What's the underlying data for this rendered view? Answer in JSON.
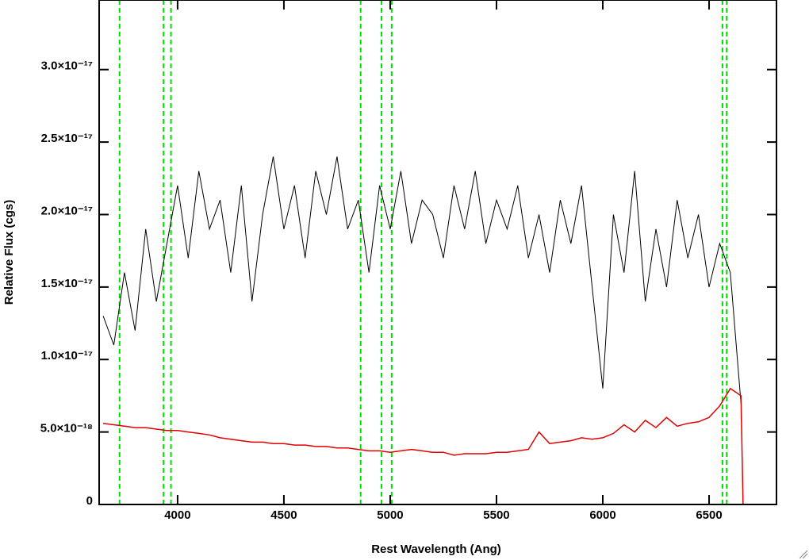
{
  "chart_data": {
    "type": "line",
    "xlabel": "Rest Wavelength (Ang)",
    "ylabel": "Relative Flux (cgs)",
    "xlim": [
      3631,
      6817
    ],
    "ylim": [
      0,
      3.48e-17
    ],
    "xticks": [
      4000,
      4500,
      5000,
      5500,
      6000,
      6500
    ],
    "yticks": [
      0,
      {
        "value": 5e-18,
        "label": "5.0×10⁻¹⁸"
      },
      {
        "value": 1e-17,
        "label": "1.0×10⁻¹⁷"
      },
      {
        "value": 1.5e-17,
        "label": "1.5×10⁻¹⁷"
      },
      {
        "value": 2e-17,
        "label": "2.0×10⁻¹⁷"
      },
      {
        "value": 2.5e-17,
        "label": "2.5×10⁻¹⁷"
      },
      {
        "value": 3e-17,
        "label": "3.0×10⁻¹⁷"
      }
    ],
    "series": [
      {
        "color": "#000000",
        "x": [
          3650,
          3700,
          3750,
          3800,
          3850,
          3900,
          3950,
          4000,
          4050,
          4100,
          4150,
          4200,
          4250,
          4300,
          4350,
          4400,
          4450,
          4500,
          4550,
          4600,
          4650,
          4700,
          4750,
          4800,
          4850,
          4900,
          4950,
          5000,
          5050,
          5100,
          5150,
          5200,
          5250,
          5300,
          5350,
          5400,
          5450,
          5500,
          5550,
          5600,
          5650,
          5700,
          5750,
          5800,
          5850,
          5900,
          5950,
          6000,
          6050,
          6100,
          6150,
          6200,
          6250,
          6300,
          6350,
          6400,
          6450,
          6500,
          6550,
          6600,
          6650
        ],
        "values": [
          1.3e-17,
          1.1e-17,
          1.6e-17,
          1.2e-17,
          1.9e-17,
          1.4e-17,
          1.8e-17,
          2.2e-17,
          1.7e-17,
          2.3e-17,
          1.9e-17,
          2.1e-17,
          1.6e-17,
          2.2e-17,
          1.4e-17,
          2e-17,
          2.4e-17,
          1.9e-17,
          2.2e-17,
          1.7e-17,
          2.3e-17,
          2e-17,
          2.4e-17,
          1.9e-17,
          2.1e-17,
          1.6e-17,
          2.2e-17,
          1.9e-17,
          2.3e-17,
          1.8e-17,
          2.1e-17,
          2e-17,
          1.7e-17,
          2.2e-17,
          1.9e-17,
          2.3e-17,
          1.8e-17,
          2.1e-17,
          1.9e-17,
          2.2e-17,
          1.7e-17,
          2e-17,
          1.6e-17,
          2.1e-17,
          1.8e-17,
          2.2e-17,
          1.5e-17,
          8e-18,
          2e-17,
          1.6e-17,
          2.3e-17,
          1.4e-17,
          1.9e-17,
          1.5e-17,
          2.1e-17,
          1.7e-17,
          2e-17,
          1.5e-17,
          1.8e-17,
          1.6e-17,
          7e-18
        ]
      },
      {
        "color": "#e00000",
        "x": [
          3650,
          3700,
          3750,
          3800,
          3850,
          3900,
          3950,
          4000,
          4050,
          4100,
          4150,
          4200,
          4250,
          4300,
          4350,
          4400,
          4450,
          4500,
          4550,
          4600,
          4650,
          4700,
          4750,
          4800,
          4850,
          4900,
          4950,
          5000,
          5050,
          5100,
          5150,
          5200,
          5250,
          5300,
          5350,
          5400,
          5450,
          5500,
          5550,
          5600,
          5650,
          5700,
          5750,
          5800,
          5850,
          5900,
          5950,
          6000,
          6050,
          6100,
          6150,
          6200,
          6250,
          6300,
          6350,
          6400,
          6450,
          6500,
          6550,
          6600,
          6650,
          6660,
          6817
        ],
        "values": [
          5.6e-18,
          5.5e-18,
          5.4e-18,
          5.3e-18,
          5.3e-18,
          5.2e-18,
          5.1e-18,
          5.1e-18,
          5e-18,
          4.9e-18,
          4.8e-18,
          4.6e-18,
          4.5e-18,
          4.4e-18,
          4.3e-18,
          4.3e-18,
          4.2e-18,
          4.2e-18,
          4.1e-18,
          4.1e-18,
          4e-18,
          4e-18,
          3.9e-18,
          3.9e-18,
          3.8e-18,
          3.7e-18,
          3.7e-18,
          3.6e-18,
          3.7e-18,
          3.8e-18,
          3.7e-18,
          3.6e-18,
          3.6e-18,
          3.4e-18,
          3.5e-18,
          3.5e-18,
          3.5e-18,
          3.6e-18,
          3.6e-18,
          3.7e-18,
          3.8e-18,
          5e-18,
          4.2e-18,
          4.3e-18,
          4.4e-18,
          4.6e-18,
          4.5e-18,
          4.6e-18,
          4.9e-18,
          5.5e-18,
          5e-18,
          5.8e-18,
          5.3e-18,
          6e-18,
          5.4e-18,
          5.6e-18,
          5.7e-18,
          6e-18,
          6.8e-18,
          8e-18,
          7.5e-18,
          0,
          0
        ]
      }
    ],
    "vlines": {
      "color": "#00e000",
      "x": [
        3727,
        3934,
        3969,
        4861,
        4959,
        5007,
        6563,
        6583
      ]
    }
  }
}
